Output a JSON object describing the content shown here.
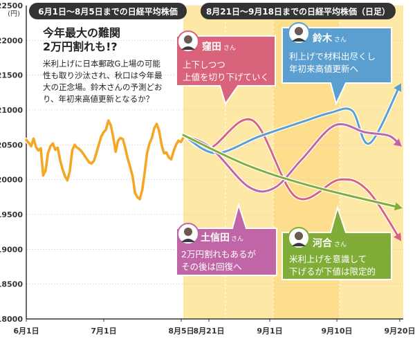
{
  "unit_label": "(円)",
  "colors": {
    "history": "#f5a623",
    "forecast_band": "#fde8a6",
    "forecast_band_dark": "#fbd679",
    "kubota": "#d9637a",
    "suzuki": "#5a9fd0",
    "tsuchida": "#c066a6",
    "kawai": "#80ad38",
    "header": "#333333"
  },
  "headers": {
    "left": "6月1日〜8月5日までの日経平均株価",
    "right": "8月21日〜9月18日までの日経平均株価（日足）"
  },
  "intro": {
    "title_line1": "今年最大の難関",
    "title_line2": "2万円割れも!?",
    "body": [
      "米利上げに日本郵政G上場の可能",
      "性も取り沙汰され、秋口は今年最",
      "大の正念場。鈴木さんの予測どお",
      "り、年初来高値更新となるか？"
    ]
  },
  "callouts": {
    "kubota": {
      "name": "窪田",
      "suffix": "さん",
      "lines": [
        "上下しつつ",
        "上値を切り下げていく"
      ],
      "avatar": "kubota-avatar"
    },
    "suzuki": {
      "name": "鈴木",
      "suffix": "さん",
      "lines": [
        "利上げで材料出尽くし",
        "年初来高値更新へ"
      ],
      "avatar": "suzuki-avatar"
    },
    "tsuchida": {
      "name": "土信田",
      "suffix": "さん",
      "lines": [
        "2万円割れもあるが",
        "その後は回復へ"
      ],
      "avatar": "tsuchida-avatar"
    },
    "kawai": {
      "name": "河合",
      "suffix": "さん",
      "lines": [
        "米利上げを意識して",
        "下げるが下値は限定的"
      ],
      "avatar": "kawai-avatar"
    }
  },
  "chart_data": {
    "type": "line",
    "title": "",
    "xlabel": "",
    "ylabel": "",
    "ylim": [
      18000,
      22500
    ],
    "y_ticks": [
      18000,
      18500,
      19000,
      19500,
      20000,
      20500,
      21000,
      21500,
      22000,
      22500
    ],
    "x_tick_labels": [
      "6月1日",
      "7月1日",
      "8月5日",
      "8月21日",
      "9月1日",
      "9月10日",
      "9月20日"
    ],
    "grid": true,
    "history": {
      "label": "日経平均株価",
      "values": [
        20570,
        20530,
        20480,
        20590,
        20470,
        20420,
        20450,
        20060,
        20130,
        20380,
        20480,
        20520,
        20430,
        20460,
        20280,
        20150,
        20050,
        19990,
        20120,
        20420,
        20500,
        20460,
        20440,
        20400,
        20350,
        20300,
        20250,
        20230,
        20270,
        20380,
        20500,
        20620,
        20680,
        20720,
        20850,
        20780,
        20610,
        20400,
        20560,
        20600,
        20580,
        20450,
        20300,
        20180,
        20050,
        19810,
        19750,
        19720,
        19850,
        20100,
        20380,
        20520,
        20600,
        20740,
        20800,
        20700,
        20500,
        20380,
        20390,
        20320,
        20290,
        20410,
        20500,
        20560,
        20540,
        20600
      ]
    },
    "forecasts": [
      {
        "name": "窪田さん",
        "x": [
          0,
          0.12,
          0.32,
          0.52,
          0.72,
          0.85,
          1.0
        ],
        "values": [
          20640,
          20450,
          20850,
          19750,
          20000,
          19850,
          19150
        ]
      },
      {
        "name": "鈴木さん",
        "x": [
          0,
          0.15,
          0.35,
          0.55,
          0.68,
          0.78,
          0.86,
          1.0
        ],
        "values": [
          20640,
          20380,
          20620,
          20830,
          20960,
          20990,
          20520,
          21350
        ]
      },
      {
        "name": "土信田さん",
        "x": [
          0,
          0.13,
          0.3,
          0.42,
          0.55,
          0.7,
          0.84,
          0.95,
          1.0
        ],
        "values": [
          20640,
          20450,
          19900,
          19880,
          20300,
          20780,
          20680,
          20630,
          20500
        ]
      },
      {
        "name": "河合さん",
        "x": [
          0,
          0.3,
          0.6,
          1.0
        ],
        "values": [
          20640,
          20200,
          19900,
          19600
        ]
      }
    ]
  }
}
